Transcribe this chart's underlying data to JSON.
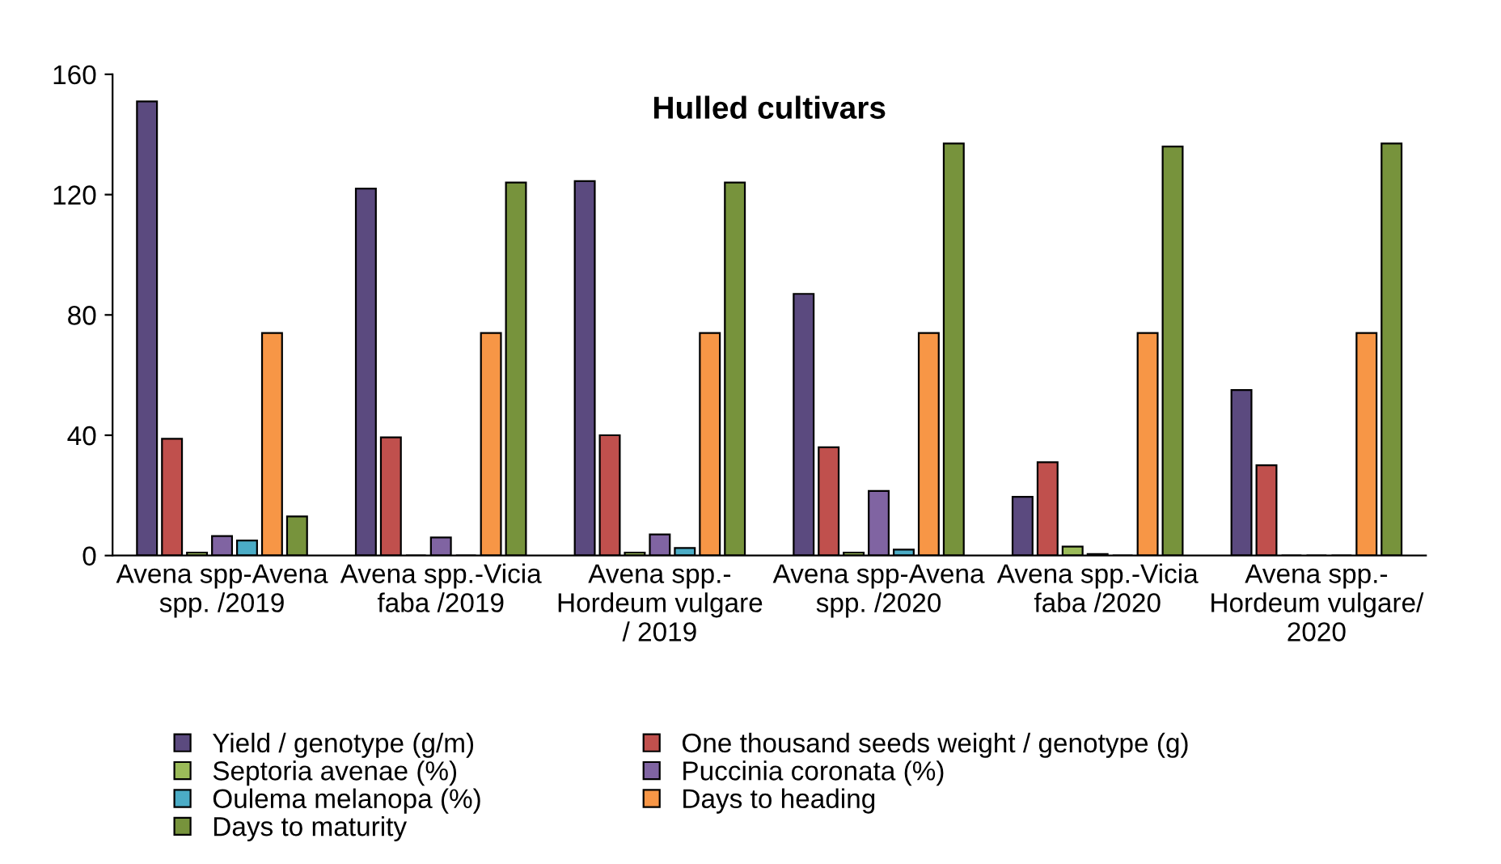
{
  "chart_data": {
    "type": "bar",
    "title": "Hulled cultivars",
    "categories": [
      "Avena spp-Avena\nspp. /2019",
      "Avena spp.-Vicia\nfaba /2019",
      "Avena spp.-\nHordeum vulgare\n/ 2019",
      "Avena spp-Avena\nspp. /2020",
      "Avena spp.-Vicia\nfaba /2020",
      "Avena spp.-\nHordeum vulgare/\n2020"
    ],
    "series": [
      {
        "name": "Yield / genotype (g/m)",
        "color": "#5b4a7f",
        "values": [
          151,
          122,
          124.5,
          87,
          19.5,
          55
        ]
      },
      {
        "name": "One thousand seeds weight / genotype (g)",
        "color": "#c0504d",
        "values": [
          38.8,
          39.3,
          40,
          36,
          31,
          30
        ]
      },
      {
        "name": "Septoria avenae (%)",
        "color": "#9bbb59",
        "values": [
          1,
          null,
          1,
          1,
          3,
          0
        ]
      },
      {
        "name": "Puccinia coronata (%)",
        "color": "#8064a2",
        "values": [
          6.5,
          6,
          7,
          21.5,
          0.5,
          0
        ]
      },
      {
        "name": "Oulema melanopa (%)",
        "color": "#4bacc6",
        "values": [
          5,
          0,
          2.5,
          2,
          null,
          null
        ]
      },
      {
        "name": "Days to heading",
        "color": "#f79646",
        "values": [
          74,
          74,
          74,
          74,
          74,
          74
        ]
      },
      {
        "name": "Days to maturity",
        "color": "#77933c",
        "values": [
          13,
          124,
          124,
          137,
          136,
          137
        ]
      }
    ],
    "ylim": [
      0,
      160
    ],
    "yticks": [
      0,
      40,
      80,
      120,
      160
    ],
    "grid": false,
    "legend": "bottom"
  }
}
